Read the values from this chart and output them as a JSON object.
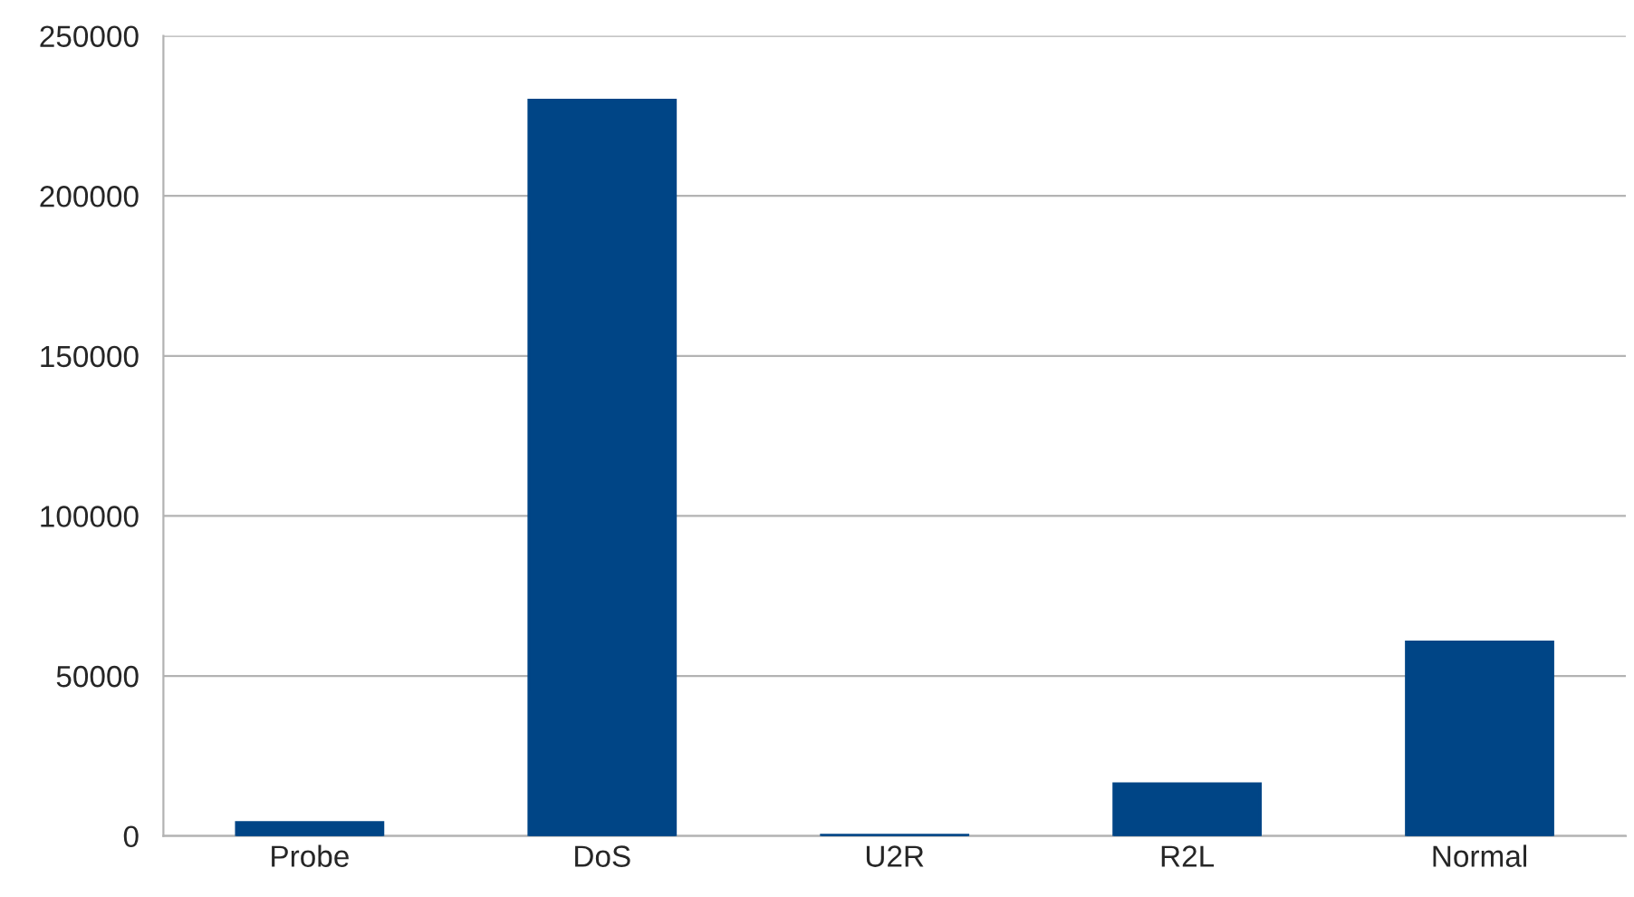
{
  "chart_data": {
    "type": "bar",
    "categories": [
      "Probe",
      "DoS",
      "U2R",
      "R2L",
      "Normal"
    ],
    "values": [
      4200,
      229900,
      200,
      16300,
      60600
    ],
    "color": "#004586",
    "ylim": [
      0,
      250000
    ],
    "yticks": [
      0,
      50000,
      100000,
      150000,
      200000,
      250000
    ],
    "grid": "y",
    "legend": false
  }
}
